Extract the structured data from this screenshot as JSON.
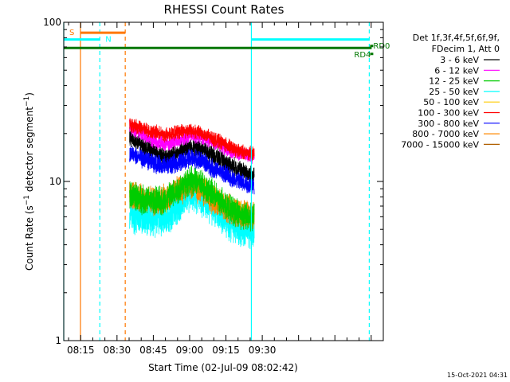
{
  "chart_data": {
    "type": "line",
    "title": "RHESSI Count Rates",
    "xlabel": "Start Time (02-Jul-09 08:02:42)",
    "ylabel": "Count Rate (s⁻¹ detector segment⁻¹)",
    "ylabel_main": "Count Rate (s",
    "ylabel_sup1": "−1",
    "ylabel_mid": " detector segment",
    "ylabel_sup2": "−1",
    "ylabel_end": ")",
    "y_scale": "log",
    "ylim": [
      1,
      100
    ],
    "xlim_minutes": [
      8.0,
      140.0
    ],
    "x_ticks": [
      {
        "label": "08:15",
        "minute": 15
      },
      {
        "label": "08:30",
        "minute": 30
      },
      {
        "label": "08:45",
        "minute": 45
      },
      {
        "label": "09:00",
        "minute": 60
      },
      {
        "label": "09:15",
        "minute": 75
      },
      {
        "label": "09:30",
        "minute": 90
      }
    ],
    "y_ticks": [
      {
        "label": "1",
        "value": 1
      },
      {
        "label": "10",
        "value": 10
      },
      {
        "label": "100",
        "value": 100
      }
    ],
    "data_start_minute": 35.2,
    "data_end_minute": 86.7,
    "legend_placement": "top-right",
    "legend_header": [
      "Det 1f,3f,4f,5f,6f,9f,",
      "FDecim 1, Att 0"
    ],
    "series": [
      {
        "name": "3 - 6 keV",
        "color": "#000000",
        "x_minutes": [
          35,
          40,
          45,
          50,
          55,
          60,
          65,
          70,
          75,
          80,
          85,
          86.7
        ],
        "values": [
          19,
          17,
          15.5,
          14,
          15,
          16.5,
          16,
          14.5,
          13,
          12,
          11,
          11
        ]
      },
      {
        "name": "6 - 12 keV",
        "color": "#ff00ff",
        "x_minutes": [
          35,
          40,
          45,
          50,
          55,
          60,
          65,
          70,
          75,
          80,
          85,
          86.7
        ],
        "values": [
          22,
          20,
          18,
          17,
          18,
          19.5,
          19,
          17.5,
          16,
          15,
          14.5,
          14.5
        ]
      },
      {
        "name": "12 - 25 keV",
        "color": "#00cc00",
        "x_minutes": [
          35,
          40,
          45,
          50,
          55,
          60,
          65,
          70,
          75,
          80,
          85,
          86.7
        ],
        "values": [
          8.2,
          7.8,
          7.5,
          7.6,
          8.8,
          10.2,
          9.6,
          8.2,
          7.0,
          6.3,
          6.0,
          6.0
        ]
      },
      {
        "name": "25 - 50 keV",
        "color": "#00ffff",
        "x_minutes": [
          35,
          40,
          45,
          50,
          55,
          60,
          65,
          70,
          75,
          80,
          85,
          86.7
        ],
        "values": [
          6.2,
          6.0,
          5.8,
          6.0,
          7.0,
          8.6,
          8.0,
          6.8,
          5.8,
          5.2,
          4.9,
          4.9
        ]
      },
      {
        "name": "50 - 100 keV",
        "color": "#ffcc00",
        "x_minutes": [
          35,
          40,
          45,
          50,
          55,
          60,
          65,
          70,
          75,
          80,
          85,
          86.7
        ],
        "values": [
          7.8,
          7.4,
          7.1,
          7.3,
          8.2,
          9.2,
          8.8,
          7.6,
          6.6,
          6.1,
          5.8,
          5.8
        ]
      },
      {
        "name": "100 - 300 keV",
        "color": "#ff0000",
        "x_minutes": [
          35,
          40,
          45,
          50,
          55,
          60,
          65,
          70,
          75,
          80,
          85,
          86.7
        ],
        "values": [
          23,
          21.5,
          20.5,
          19.5,
          20.5,
          21,
          20,
          18.5,
          17,
          15.5,
          15,
          15
        ]
      },
      {
        "name": "300 - 800 keV",
        "color": "#0000ff",
        "x_minutes": [
          35,
          40,
          45,
          50,
          55,
          60,
          65,
          70,
          75,
          80,
          85,
          86.7
        ],
        "values": [
          15,
          14,
          13,
          12.5,
          13,
          14,
          13.5,
          12,
          11,
          10,
          9.5,
          9.5
        ]
      },
      {
        "name": "800 - 7000 keV",
        "color": "#ff8800",
        "x_minutes": [
          35,
          40,
          45,
          50,
          55,
          60,
          65,
          70,
          75,
          80,
          85,
          86.7
        ],
        "values": [
          8.4,
          8.0,
          7.5,
          7.8,
          8.8,
          9.4,
          8.8,
          7.6,
          6.8,
          6.3,
          6.1,
          6.1
        ]
      },
      {
        "name": "7000 - 15000 keV",
        "color": "#b06000",
        "x_minutes": [],
        "values": []
      }
    ],
    "annotations": {
      "attenuator": {
        "label": "S",
        "color": "#ff7700",
        "start_minute": 14.9,
        "end_minute": 33.4,
        "y_value": 86
      },
      "night_bars": [
        {
          "label": "N",
          "color": "#00ffff",
          "start_minute": 8.0,
          "end_minute": 22.9,
          "y_value": 78
        },
        {
          "label": "",
          "color": "#00ffff",
          "start_minute": 85.5,
          "end_minute": 134.2,
          "y_value": 78
        }
      ],
      "night_lines": [
        {
          "minute": 8.0,
          "style": "solid",
          "color": "#00ffff"
        },
        {
          "minute": 22.9,
          "style": "dashed",
          "color": "#00ffff"
        },
        {
          "minute": 85.5,
          "style": "solid",
          "color": "#00ffff"
        },
        {
          "minute": 134.2,
          "style": "dashed",
          "color": "#00ffff"
        }
      ],
      "saa_lines": [
        {
          "minute": 14.9,
          "style": "solid",
          "color": "#ff7700"
        },
        {
          "minute": 33.4,
          "style": "dashed",
          "color": "#ff7700"
        }
      ],
      "rad_bar": {
        "color": "#007700",
        "start_minute": 8.0,
        "end_minute": 135.2,
        "y_value": 69
      },
      "rd0": {
        "label": "RD0",
        "color": "#007700"
      },
      "rd4": {
        "label": "RD4",
        "color": "#007700"
      }
    },
    "timestamp": "15-Oct-2021 04:31"
  }
}
